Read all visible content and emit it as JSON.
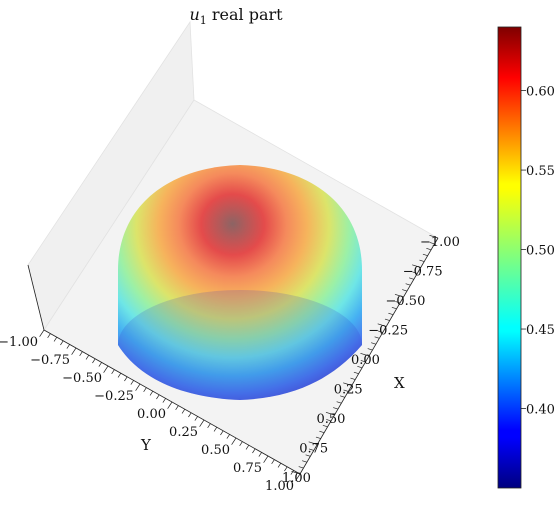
{
  "chart_data": {
    "type": "surface3d",
    "title": {
      "var": "u",
      "sub": "1",
      "rest": " real part"
    },
    "xlabel": "X",
    "ylabel": "Y",
    "x_ticks": [
      "−1.00",
      "−0.75",
      "−0.50",
      "−0.25",
      "0.00",
      "0.25",
      "0.50",
      "0.75",
      "1.00"
    ],
    "y_ticks": [
      "−1.00",
      "−0.75",
      "−0.50",
      "−0.25",
      "0.00",
      "0.25",
      "0.50",
      "0.75",
      "1.00"
    ],
    "xlim": [
      -1.0,
      1.0
    ],
    "ylim": [
      -1.0,
      1.0
    ],
    "colorbar": {
      "colormap": "jet",
      "min": 0.35,
      "max": 0.64,
      "ticks": [
        "0.40",
        "0.45",
        "0.50",
        "0.55",
        "0.60"
      ],
      "tick_values": [
        0.4,
        0.45,
        0.5,
        0.55,
        0.6
      ]
    },
    "surface": {
      "shape": "hemisphere",
      "value_at_rim": 0.35,
      "value_at_top": 0.64
    },
    "grid": false
  }
}
